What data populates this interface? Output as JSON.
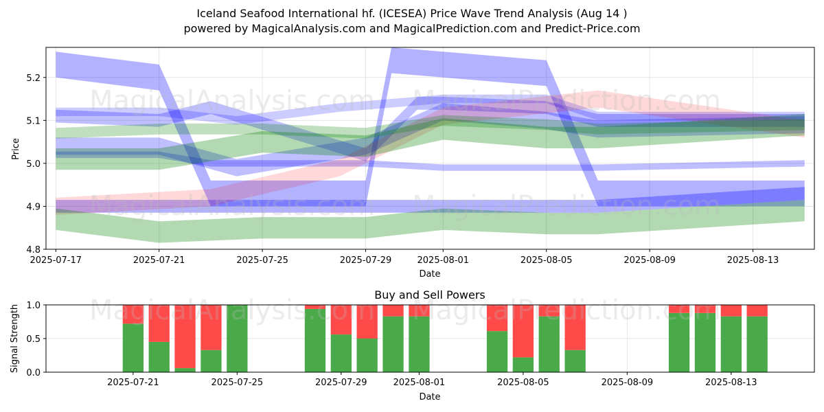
{
  "title_line1": "Iceland Seafood International hf. (ICESEA) Price Wave Trend Analysis (Aug 14 )",
  "title_line2": "powered by MagicalAnalysis.com and MagicalPrediction.com and Predict-Price.com",
  "watermarks": [
    "MagicalAnalysis.com",
    "MagicalPrediction.com",
    "MagicalAnalysis.com",
    "MagicalPrediction.com",
    "MagicalAnalysis.com",
    "MagicalPrediction.com"
  ],
  "colors": {
    "blue": "#0000ff",
    "green": "#008000",
    "red": "#ff0000",
    "buy": "#4aaa4a",
    "sell": "#ff4a4a"
  },
  "chart_data": [
    {
      "type": "area",
      "title": "Price Wave Trend Analysis",
      "xlabel": "Date",
      "ylabel": "Price",
      "ylim": [
        4.8,
        5.27
      ],
      "xlim": [
        "2025-07-17",
        "2025-08-15"
      ],
      "x_ticks": [
        "2025-07-17",
        "2025-07-21",
        "2025-07-25",
        "2025-07-29",
        "2025-08-01",
        "2025-08-05",
        "2025-08-09",
        "2025-08-13"
      ],
      "y_ticks": [
        "4.8",
        "4.9",
        "5.0",
        "5.1",
        "5.2"
      ],
      "grid": true,
      "bands": [
        {
          "color": "blue",
          "opacity": 0.3,
          "x": [
            "2025-07-17",
            "2025-07-21",
            "2025-07-23",
            "2025-07-29",
            "2025-07-30",
            "2025-08-01",
            "2025-08-05",
            "2025-08-07",
            "2025-08-15"
          ],
          "y": [
            5.23,
            5.2,
            4.93,
            4.93,
            5.24,
            5.23,
            5.21,
            4.93,
            4.93
          ],
          "width": 0.06
        },
        {
          "color": "blue",
          "opacity": 0.25,
          "x": [
            "2025-07-17",
            "2025-07-21",
            "2025-07-23",
            "2025-07-29",
            "2025-07-31",
            "2025-08-01",
            "2025-08-05",
            "2025-08-07",
            "2025-08-15"
          ],
          "y": [
            5.11,
            5.1,
            5.13,
            5.02,
            5.14,
            5.14,
            5.13,
            5.1,
            5.1
          ],
          "width": 0.03
        },
        {
          "color": "blue",
          "opacity": 0.25,
          "x": [
            "2025-07-17",
            "2025-07-21",
            "2025-07-24",
            "2025-07-29",
            "2025-08-01",
            "2025-08-05",
            "2025-08-07",
            "2025-08-15"
          ],
          "y": [
            5.04,
            5.04,
            4.99,
            5.04,
            5.12,
            5.1,
            5.08,
            5.09
          ],
          "width": 0.04
        },
        {
          "color": "blue",
          "opacity": 0.2,
          "x": [
            "2025-07-17",
            "2025-07-21",
            "2025-07-24",
            "2025-07-28",
            "2025-08-01",
            "2025-08-05",
            "2025-08-07",
            "2025-08-15"
          ],
          "y": [
            5.12,
            5.12,
            5.1,
            5.13,
            5.15,
            5.15,
            5.11,
            5.11
          ],
          "width": 0.02
        },
        {
          "color": "blue",
          "opacity": 0.25,
          "x": [
            "2025-07-17",
            "2025-07-21",
            "2025-07-23",
            "2025-07-29",
            "2025-08-01",
            "2025-08-05",
            "2025-08-07",
            "2025-08-15"
          ],
          "y": [
            5.02,
            5.02,
            5.0,
            5.0,
            4.99,
            4.99,
            4.99,
            5.0
          ],
          "width": 0.015
        },
        {
          "color": "blue",
          "opacity": 0.3,
          "x": [
            "2025-07-17",
            "2025-08-07",
            "2025-08-15"
          ],
          "y": [
            4.9,
            4.9,
            4.93
          ],
          "width": 0.03
        },
        {
          "color": "red",
          "opacity": 0.15,
          "x": [
            "2025-07-17",
            "2025-07-23",
            "2025-07-28",
            "2025-08-01",
            "2025-08-07",
            "2025-08-15"
          ],
          "y": [
            4.9,
            4.92,
            4.99,
            5.11,
            5.15,
            5.08
          ],
          "width": 0.04
        },
        {
          "color": "green",
          "opacity": 0.3,
          "x": [
            "2025-07-17",
            "2025-07-21",
            "2025-07-25",
            "2025-07-29",
            "2025-08-01",
            "2025-08-05",
            "2025-08-07",
            "2025-08-15"
          ],
          "y": [
            5.01,
            5.01,
            5.05,
            5.04,
            5.08,
            5.06,
            5.06,
            5.09
          ],
          "width": 0.05
        },
        {
          "color": "green",
          "opacity": 0.3,
          "x": [
            "2025-07-17",
            "2025-07-21",
            "2025-07-25",
            "2025-07-29",
            "2025-08-01",
            "2025-08-05",
            "2025-08-07",
            "2025-08-15"
          ],
          "y": [
            4.87,
            4.84,
            4.85,
            4.85,
            4.87,
            4.86,
            4.86,
            4.89
          ],
          "width": 0.05
        },
        {
          "color": "green",
          "opacity": 0.25,
          "x": [
            "2025-07-17",
            "2025-07-21",
            "2025-07-25",
            "2025-07-29",
            "2025-08-01",
            "2025-08-05",
            "2025-08-07",
            "2025-08-15"
          ],
          "y": [
            5.07,
            5.08,
            5.08,
            5.07,
            5.1,
            5.09,
            5.08,
            5.09
          ],
          "width": 0.025
        }
      ]
    },
    {
      "type": "bar",
      "title": "Buy and Sell Powers",
      "xlabel": "Date",
      "ylabel": "Signal Strength",
      "ylim": [
        0,
        1
      ],
      "x_ticks": [
        "2025-07-21",
        "2025-07-25",
        "2025-07-29",
        "2025-08-01",
        "2025-08-05",
        "2025-08-09",
        "2025-08-13"
      ],
      "y_ticks": [
        "0.0",
        "0.5",
        "1.0"
      ],
      "grid": true,
      "series": [
        {
          "name": "Buy",
          "color": "buy",
          "values": [
            0.72,
            0.45,
            0.06,
            0.33,
            1.0,
            0.94,
            0.56,
            0.5,
            0.83,
            0.83,
            0.61,
            0.22,
            0.83,
            0.33,
            0.88,
            0.88,
            0.83,
            0.83
          ]
        },
        {
          "name": "Sell",
          "color": "sell",
          "values": [
            0.28,
            0.55,
            0.94,
            0.67,
            0.0,
            0.06,
            0.44,
            0.5,
            0.17,
            0.17,
            0.39,
            0.78,
            0.17,
            0.67,
            0.12,
            0.12,
            0.17,
            0.17
          ]
        }
      ],
      "dates": [
        "2025-07-21",
        "2025-07-22",
        "2025-07-23",
        "2025-07-24",
        "2025-07-25",
        "2025-07-28",
        "2025-07-29",
        "2025-07-30",
        "2025-07-31",
        "2025-08-01",
        "2025-08-04",
        "2025-08-05",
        "2025-08-06",
        "2025-08-07",
        "2025-08-11",
        "2025-08-12",
        "2025-08-13",
        "2025-08-14"
      ]
    }
  ]
}
